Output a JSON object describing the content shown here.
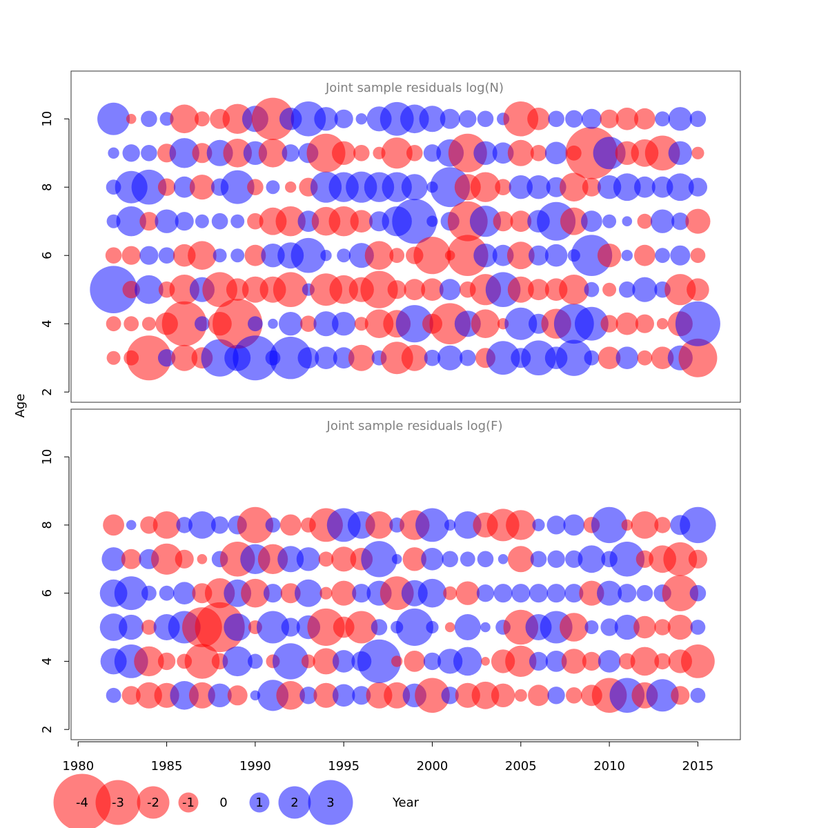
{
  "chart_data": {
    "type": "scatter",
    "xlabel": "Year",
    "ylabel": "Age",
    "xlim": [
      1979.6,
      2017.4
    ],
    "ylim": [
      1.7,
      11.4
    ],
    "xticks": [
      "1980",
      "1985",
      "1990",
      "1995",
      "2000",
      "2005",
      "2010",
      "2015"
    ],
    "yticks": [
      "2",
      "4",
      "6",
      "8",
      "10"
    ],
    "colors": {
      "positive": "#0000ff",
      "negative": "#ff0000",
      "opacity": 0.5
    },
    "panels": [
      {
        "title": "Joint sample residuals log(N)",
        "years": [
          1982,
          1983,
          1984,
          1985,
          1986,
          1987,
          1988,
          1989,
          1990,
          1991,
          1992,
          1993,
          1994,
          1995,
          1996,
          1997,
          1998,
          1999,
          2000,
          2001,
          2002,
          2003,
          2004,
          2005,
          2006,
          2007,
          2008,
          2009,
          2010,
          2011,
          2012,
          2013,
          2014,
          2015
        ],
        "ages": [
          3,
          4,
          5,
          6,
          7,
          8,
          9,
          10
        ],
        "residuals": [
          [
            -0.5,
            -0.6,
            3.2,
            -0.7,
            0.5,
            0.6,
            0.3,
            2.0
          ],
          [
            -0.6,
            -0.6,
            -0.8,
            -0.9,
            1.8,
            2.0,
            0.8,
            -0.2
          ],
          [
            -3.0,
            -0.5,
            1.7,
            0.9,
            -0.9,
            2.2,
            0.7,
            0.7
          ],
          [
            0.8,
            -1.2,
            -0.7,
            0.7,
            1.3,
            -0.8,
            -0.9,
            0.5
          ],
          [
            -1.5,
            -3.0,
            -1.8,
            -1.2,
            0.9,
            1.1,
            1.8,
            -1.7
          ],
          [
            -1.1,
            0.6,
            1.4,
            -1.7,
            0.5,
            -1.4,
            -1.0,
            -0.6
          ],
          [
            2.4,
            -1.3,
            -2.2,
            0.5,
            0.7,
            0.8,
            1.5,
            -1.0
          ],
          [
            1.5,
            -3.4,
            -1.2,
            0.5,
            0.5,
            2.1,
            -1.7,
            -1.8
          ],
          [
            3.0,
            0.6,
            -1.5,
            -1.1,
            -0.7,
            -0.7,
            1.3,
            1.5
          ],
          [
            0.6,
            0.2,
            -1.5,
            1.3,
            -1.6,
            0.5,
            -1.7,
            -2.8
          ],
          [
            2.8,
            1.3,
            -2.2,
            1.5,
            -1.8,
            -0.3,
            0.8,
            1.2
          ],
          [
            1.1,
            -0.7,
            0.4,
            2.2,
            1.1,
            -0.9,
            1.0,
            2.2
          ],
          [
            1.2,
            1.4,
            -2.0,
            0.3,
            -1.7,
            1.9,
            -2.5,
            1.3
          ],
          [
            1.1,
            1.3,
            -1.7,
            0.5,
            -1.8,
            1.8,
            -1.3,
            0.9
          ],
          [
            -1.5,
            -0.5,
            -1.4,
            1.4,
            -1.2,
            1.9,
            -0.7,
            0.3
          ],
          [
            0.6,
            -1.7,
            -2.4,
            -1.7,
            1.0,
            1.8,
            -0.4,
            1.4
          ],
          [
            -2.0,
            -1.6,
            -0.9,
            -0.6,
            1.8,
            1.8,
            -1.9,
            2.1
          ],
          [
            -1.5,
            2.4,
            -1.1,
            -0.8,
            3.0,
            1.5,
            -0.7,
            1.7
          ],
          [
            0.7,
            -1.0,
            -1.2,
            -2.4,
            0.3,
            0.3,
            0.8,
            1.5
          ],
          [
            1.4,
            -2.7,
            1.1,
            -0.2,
            0.9,
            2.6,
            1.6,
            1.0
          ],
          [
            0.7,
            1.5,
            -0.7,
            -2.7,
            -2.6,
            -1.5,
            -2.5,
            0.8
          ],
          [
            -1.0,
            -1.7,
            -1.9,
            1.3,
            1.9,
            -1.8,
            1.3,
            0.7
          ],
          [
            2.1,
            -0.3,
            2.2,
            1.1,
            -1.0,
            -0.7,
            1.1,
            0.4
          ],
          [
            1.0,
            2.0,
            -1.5,
            -1.6,
            -1.1,
            1.3,
            -1.5,
            -2.2
          ],
          [
            2.2,
            1.0,
            -1.1,
            1.0,
            1.2,
            1.3,
            -0.7,
            -1.2
          ],
          [
            1.2,
            -1.8,
            -1.2,
            1.2,
            2.5,
            1.0,
            1.2,
            0.7
          ],
          [
            2.3,
            2.6,
            -1.8,
            0.4,
            -1.6,
            -1.7,
            -0.6,
            0.8
          ],
          [
            0.6,
            2.1,
            0.6,
            2.7,
            1.1,
            -0.9,
            -3.6,
            1.0
          ],
          [
            -1.2,
            -0.8,
            -0.5,
            -1.3,
            0.5,
            1.3,
            2.0,
            -0.9
          ],
          [
            1.2,
            -1.2,
            0.7,
            0.3,
            0.2,
            1.6,
            -1.3,
            -1.2
          ],
          [
            -0.6,
            -0.9,
            1.4,
            -1.1,
            -0.6,
            1.1,
            -1.6,
            -1.1
          ],
          [
            -1.2,
            -0.3,
            0.7,
            0.6,
            1.3,
            1.1,
            -2.2,
            0.6
          ],
          [
            1.4,
            -1.4,
            -1.9,
            1.0,
            0.8,
            1.6,
            1.3,
            1.3
          ],
          [
            -2.5,
            3.0,
            -1.2,
            -0.6,
            -1.4,
            0.9,
            -0.4,
            0.7
          ]
        ]
      },
      {
        "title": "Joint sample residuals log(F)",
        "years": [
          1982,
          1983,
          1984,
          1985,
          1986,
          1987,
          1988,
          1989,
          1990,
          1991,
          1992,
          1993,
          1994,
          1995,
          1996,
          1997,
          1998,
          1999,
          2000,
          2001,
          2002,
          2003,
          2004,
          2005,
          2006,
          2007,
          2008,
          2009,
          2010,
          2011,
          2012,
          2013,
          2014,
          2015
        ],
        "ages": [
          3,
          4,
          5,
          6,
          7,
          8
        ],
        "residuals": [
          [
            0.6,
            1.5,
            1.6,
            1.6,
            1.3,
            -1.1
          ],
          [
            -0.9,
            2.1,
            1.4,
            2.1,
            -1.0,
            0.2
          ],
          [
            -1.5,
            -1.8,
            -0.6,
            0.6,
            1.0,
            -0.8
          ],
          [
            -1.4,
            -0.8,
            1.5,
            0.6,
            -1.9,
            -1.6
          ],
          [
            1.7,
            -0.6,
            2.0,
            1.2,
            -0.9,
            0.7
          ],
          [
            -1.5,
            -2.2,
            -2.6,
            -1.0,
            -0.2,
            1.6
          ],
          [
            1.3,
            -0.7,
            -3.4,
            -1.8,
            0.7,
            0.8
          ],
          [
            -1.0,
            1.8,
            1.6,
            1.6,
            -2.2,
            0.9
          ],
          [
            0.2,
            0.6,
            -0.5,
            -1.7,
            1.8,
            -2.3
          ],
          [
            1.9,
            -0.5,
            2.0,
            0.9,
            -1.8,
            0.6
          ],
          [
            -1.7,
            2.3,
            0.9,
            -1.0,
            1.5,
            -1.1
          ],
          [
            0.8,
            -0.5,
            1.3,
            1.6,
            1.3,
            -0.6
          ],
          [
            -1.4,
            -1.5,
            -2.4,
            -0.4,
            -0.6,
            -2.1
          ],
          [
            1.2,
            1.2,
            -1.1,
            -1.4,
            -1.4,
            2.1
          ],
          [
            0.9,
            1.0,
            -2.0,
            0.9,
            -1.2,
            1.6
          ],
          [
            -1.5,
            2.9,
            0.7,
            1.4,
            2.3,
            -1.6
          ],
          [
            -1.5,
            -0.3,
            0.4,
            -2.1,
            0.2,
            0.6
          ],
          [
            1.3,
            -1.1,
            2.4,
            1.5,
            -1.3,
            -1.8
          ],
          [
            -2.2,
            0.8,
            0.4,
            1.7,
            1.2,
            2.1
          ],
          [
            0.8,
            1.4,
            -0.2,
            -0.5,
            0.7,
            0.3
          ],
          [
            -1.4,
            1.7,
            1.5,
            -1.3,
            0.6,
            1.6
          ],
          [
            -1.6,
            -0.1,
            0.2,
            0.8,
            0.7,
            -1.4
          ],
          [
            -1.3,
            -1.3,
            0.6,
            0.9,
            0.2,
            -2.0
          ],
          [
            -0.4,
            -1.9,
            -2.2,
            0.9,
            -1.5,
            -1.8
          ],
          [
            -1.1,
            0.9,
            1.5,
            0.9,
            0.7,
            0.4
          ],
          [
            0.8,
            1.1,
            2.0,
            0.9,
            0.8,
            0.9
          ],
          [
            -0.7,
            -1.4,
            -1.7,
            0.9,
            0.8,
            1.1
          ],
          [
            -1.1,
            -0.9,
            0.5,
            -1.4,
            1.6,
            -0.7
          ],
          [
            -2.2,
            1.2,
            0.8,
            1.4,
            0.7,
            2.3
          ],
          [
            2.2,
            -0.7,
            1.4,
            0.9,
            2.2,
            -0.3
          ],
          [
            -1.5,
            -1.7,
            -1.2,
            0.7,
            -0.8,
            -1.6
          ],
          [
            2.0,
            -0.7,
            -0.7,
            0.8,
            -1.6,
            -0.7
          ],
          [
            -0.9,
            -1.3,
            -1.4,
            -2.3,
            -2.1,
            1.0
          ],
          [
            0.6,
            -2.1,
            0.6,
            0.7,
            -0.9,
            2.3
          ]
        ]
      }
    ],
    "legend": {
      "labels": [
        "-4",
        "-3",
        "-2",
        "-1",
        "0",
        "1",
        "2",
        "3"
      ],
      "values": [
        -4,
        -3,
        -2,
        -1,
        0,
        1,
        2,
        3
      ]
    }
  }
}
